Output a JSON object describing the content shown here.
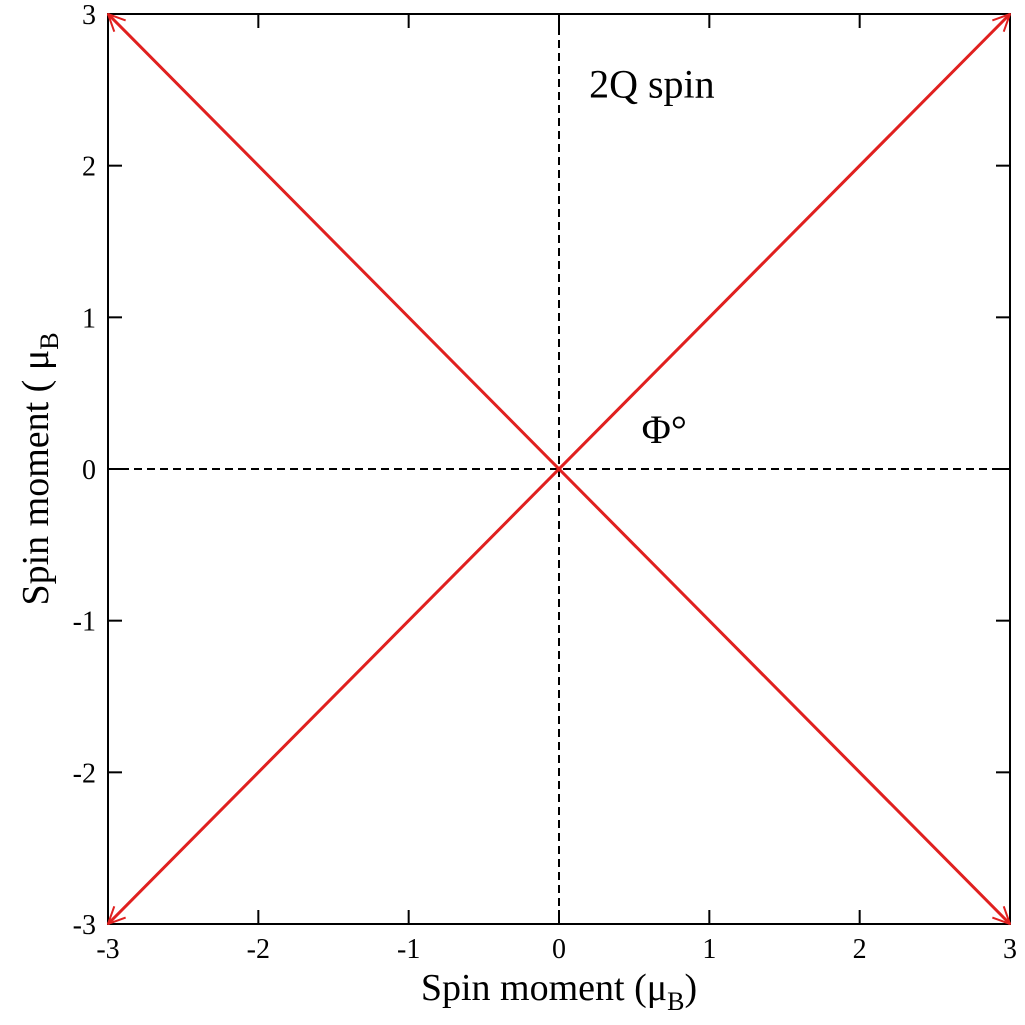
{
  "chart_data": {
    "type": "vector",
    "xlabel": [
      "Spin moment (μ",
      "B",
      ")"
    ],
    "ylabel": [
      "Spin moment ( μ",
      "B"
    ],
    "annotations": [
      {
        "text": "2Q spin",
        "x": 0.2,
        "y": 2.45
      },
      {
        "text": "Φ°",
        "x": 0.55,
        "y": 0.17
      }
    ],
    "series": [
      {
        "color": "#e0201f",
        "x": [
          -3,
          3
        ],
        "values": [
          -3,
          3
        ]
      },
      {
        "color": "#e0201f",
        "x": [
          -3,
          3
        ],
        "values": [
          3,
          -3
        ]
      }
    ],
    "hlines": [
      0
    ],
    "vlines": [
      0
    ],
    "xlim": [
      -3,
      3
    ],
    "ylim": [
      -3,
      3
    ],
    "xticks": [
      -3,
      -2,
      -1,
      0,
      1,
      2,
      3
    ],
    "yticks": [
      -3,
      -2,
      -1,
      0,
      1,
      2,
      3
    ]
  }
}
